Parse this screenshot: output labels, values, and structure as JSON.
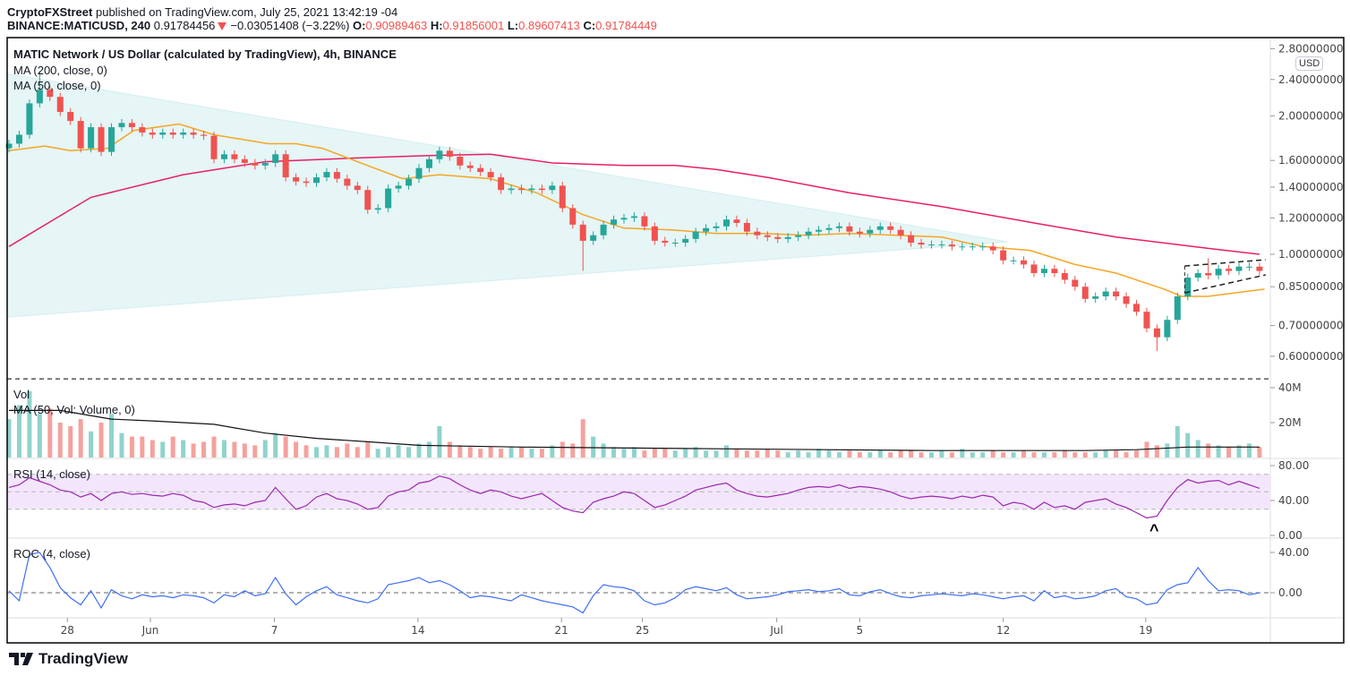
{
  "header": {
    "author": "CryptoFXStreet",
    "published": "published on TradingView.com, July 25, 2021 13:42:19 -04",
    "symbol": "BINANCE:MATICUSD, 240",
    "last": "0.91784456",
    "change": "−0.03051408 (−3.22%)",
    "o_label": "O:",
    "o": "0.90989463",
    "h_label": "H:",
    "h": "0.91856001",
    "l_label": "L:",
    "l": "0.89607413",
    "c_label": "C:",
    "c": "0.91784449"
  },
  "panes": {
    "title": "MATIC Network / US Dollar (calculated by TradingView), 4h, BINANCE",
    "ma200_label": "MA (200, close, 0)",
    "ma50_label": "MA (50, close, 0)",
    "vol_label": "Vol",
    "vol_ma_label": "MA (50, Vol: Volume, 0)",
    "rsi_label": "RSI (14, close)",
    "roc_label": "ROC (4, close)",
    "currency": "USD"
  },
  "footer": {
    "brand": "TradingView"
  },
  "colors": {
    "up": "#26a69a",
    "down": "#ef5350",
    "vol_up": "#8fd3cc",
    "vol_down": "#f5a19d",
    "ma200": "#e91e63",
    "ma50": "#f5a623",
    "rsi": "#9c27b0",
    "rsi_band": "#f3e6fc",
    "roc": "#3d6ff5",
    "triangle": "#e6f5f6"
  },
  "chart_data": {
    "type": "candlestick",
    "interval_note": "closes sampled every 12h",
    "price_scale": "log",
    "price_ticks": [
      "2.80000000",
      "2.40000000",
      "2.00000000",
      "1.60000000",
      "1.40000000",
      "1.20000000",
      "1.00000000",
      "0.85000000",
      "0.70000000",
      "0.60000000"
    ],
    "x_ticks": [
      {
        "label": "28",
        "i": 5.7
      },
      {
        "label": "Jun",
        "i": 13.8
      },
      {
        "label": "7",
        "i": 25.9
      },
      {
        "label": "14",
        "i": 39.9
      },
      {
        "label": "21",
        "i": 53.9
      },
      {
        "label": "25",
        "i": 61.8
      },
      {
        "label": "Jul",
        "i": 74.9
      },
      {
        "label": "5",
        "i": 83
      },
      {
        "label": "12",
        "i": 97
      },
      {
        "label": "19",
        "i": 110.9
      }
    ],
    "first_open": 1.7,
    "closes": [
      1.74,
      1.82,
      2.13,
      2.28,
      2.2,
      2.04,
      1.95,
      1.7,
      1.89,
      1.67,
      1.89,
      1.93,
      1.89,
      1.84,
      1.82,
      1.84,
      1.82,
      1.84,
      1.82,
      1.81,
      1.61,
      1.65,
      1.61,
      1.58,
      1.56,
      1.58,
      1.65,
      1.47,
      1.44,
      1.43,
      1.47,
      1.51,
      1.46,
      1.41,
      1.38,
      1.25,
      1.26,
      1.39,
      1.41,
      1.46,
      1.54,
      1.61,
      1.68,
      1.63,
      1.56,
      1.54,
      1.51,
      1.47,
      1.38,
      1.39,
      1.38,
      1.39,
      1.38,
      1.41,
      1.26,
      1.16,
      1.07,
      1.1,
      1.16,
      1.19,
      1.2,
      1.21,
      1.15,
      1.07,
      1.06,
      1.06,
      1.08,
      1.12,
      1.14,
      1.15,
      1.19,
      1.17,
      1.12,
      1.1,
      1.09,
      1.08,
      1.09,
      1.1,
      1.12,
      1.13,
      1.14,
      1.15,
      1.12,
      1.11,
      1.13,
      1.15,
      1.13,
      1.1,
      1.06,
      1.05,
      1.05,
      1.05,
      1.04,
      1.04,
      1.04,
      1.04,
      1.02,
      0.97,
      0.97,
      0.95,
      0.91,
      0.93,
      0.91,
      0.88,
      0.85,
      0.8,
      0.81,
      0.83,
      0.81,
      0.78,
      0.75,
      0.69,
      0.66,
      0.72,
      0.81,
      0.89,
      0.91,
      0.9,
      0.93,
      0.92,
      0.94,
      0.94,
      0.92
    ],
    "extremes": [
      {
        "i": 3,
        "high": 2.5
      },
      {
        "i": 56,
        "low": 0.92
      },
      {
        "i": 112,
        "low": 0.616
      },
      {
        "i": 117,
        "high": 0.98
      }
    ],
    "ma200": [
      [
        0,
        1.04
      ],
      [
        8,
        1.33
      ],
      [
        17,
        1.49
      ],
      [
        25,
        1.59
      ],
      [
        34,
        1.62
      ],
      [
        41,
        1.64
      ],
      [
        47,
        1.65
      ],
      [
        53,
        1.58
      ],
      [
        60,
        1.56
      ],
      [
        65,
        1.56
      ],
      [
        69,
        1.53
      ],
      [
        74,
        1.47
      ],
      [
        82,
        1.36
      ],
      [
        91,
        1.27
      ],
      [
        100,
        1.17
      ],
      [
        108,
        1.09
      ],
      [
        117,
        1.03
      ],
      [
        122,
        1.0
      ]
    ],
    "ma50": [
      [
        0,
        1.68
      ],
      [
        3.5,
        1.72
      ],
      [
        6,
        1.68
      ],
      [
        9.6,
        1.7
      ],
      [
        12.2,
        1.86
      ],
      [
        16.6,
        1.92
      ],
      [
        20,
        1.82
      ],
      [
        25.3,
        1.74
      ],
      [
        28,
        1.74
      ],
      [
        30.6,
        1.7
      ],
      [
        34,
        1.59
      ],
      [
        38.4,
        1.46
      ],
      [
        42,
        1.49
      ],
      [
        47,
        1.46
      ],
      [
        51.5,
        1.36
      ],
      [
        56,
        1.22
      ],
      [
        60,
        1.14
      ],
      [
        64.6,
        1.13
      ],
      [
        69,
        1.11
      ],
      [
        73.4,
        1.11
      ],
      [
        77.7,
        1.1
      ],
      [
        82,
        1.11
      ],
      [
        86.5,
        1.1
      ],
      [
        91,
        1.09
      ],
      [
        95,
        1.04
      ],
      [
        99.6,
        1.02
      ],
      [
        104,
        0.95
      ],
      [
        108,
        0.91
      ],
      [
        112.7,
        0.84
      ],
      [
        114.4,
        0.81
      ],
      [
        117,
        0.81
      ],
      [
        122.5,
        0.84
      ]
    ],
    "drawings": {
      "triangle": [
        [
          -0.2,
          2.47
        ],
        [
          97.4,
          1.065
        ],
        [
          -0.2,
          0.73
        ]
      ],
      "channel_upper": [
        [
          114.7,
          0.943
        ],
        [
          122.6,
          0.973
        ]
      ],
      "channel_lower": [
        [
          114.7,
          0.824
        ],
        [
          122.6,
          0.902
        ]
      ],
      "hline_price": 0.536
    },
    "volume": {
      "ticks": [
        "40M",
        "20M"
      ],
      "values_m": [
        22,
        30,
        38,
        25,
        28,
        20,
        18,
        22,
        15,
        20,
        25,
        14,
        12,
        12,
        10,
        9,
        12,
        10,
        8,
        9,
        12,
        10,
        9,
        8,
        7,
        10,
        14,
        12,
        9,
        7,
        6,
        7,
        6,
        8,
        6,
        9,
        5,
        6,
        7,
        6,
        8,
        9,
        18,
        9,
        7,
        6,
        5,
        6,
        5,
        6,
        6,
        5,
        5,
        7,
        9,
        8,
        22,
        12,
        8,
        6,
        5,
        6,
        4,
        5,
        5,
        4,
        5,
        6,
        4,
        4,
        7,
        5,
        4,
        4,
        5,
        4,
        3,
        4,
        3,
        5,
        4,
        3,
        4,
        3,
        3,
        4,
        3,
        4,
        4,
        3,
        3,
        4,
        3,
        5,
        3,
        3,
        4,
        3,
        3,
        4,
        3,
        3,
        3,
        4,
        3,
        3,
        3,
        4,
        4,
        3,
        4,
        9,
        7,
        8,
        18,
        14,
        10,
        8,
        7,
        6,
        7,
        8,
        6
      ],
      "ma_m": [
        [
          0,
          27
        ],
        [
          5,
          27
        ],
        [
          10,
          22
        ],
        [
          14,
          21
        ],
        [
          20,
          19
        ],
        [
          25,
          14
        ],
        [
          30,
          11
        ],
        [
          35,
          9
        ],
        [
          40,
          7
        ],
        [
          50,
          6
        ],
        [
          70,
          5
        ],
        [
          90,
          4
        ],
        [
          105,
          4
        ],
        [
          110,
          4.5
        ],
        [
          115,
          6
        ],
        [
          122,
          6
        ]
      ]
    },
    "rsi": {
      "ticks": [
        "80.00",
        "40.00",
        "0.00"
      ],
      "band": [
        30,
        70
      ],
      "values": [
        55,
        58,
        66,
        62,
        58,
        52,
        50,
        44,
        48,
        40,
        48,
        50,
        47,
        48,
        46,
        45,
        48,
        46,
        40,
        38,
        32,
        35,
        36,
        34,
        38,
        40,
        55,
        42,
        30,
        34,
        44,
        48,
        42,
        40,
        36,
        30,
        32,
        45,
        50,
        52,
        60,
        62,
        68,
        65,
        58,
        52,
        48,
        52,
        50,
        45,
        42,
        45,
        48,
        40,
        32,
        28,
        26,
        38,
        42,
        45,
        50,
        48,
        40,
        32,
        35,
        40,
        45,
        52,
        55,
        58,
        60,
        52,
        48,
        45,
        44,
        46,
        48,
        52,
        55,
        56,
        55,
        58,
        54,
        56,
        55,
        53,
        50,
        45,
        42,
        44,
        45,
        44,
        42,
        45,
        43,
        46,
        44,
        34,
        38,
        36,
        30,
        38,
        32,
        34,
        30,
        38,
        40,
        42,
        36,
        32,
        26,
        20,
        22,
        40,
        55,
        64,
        60,
        62,
        63,
        58,
        62,
        58,
        54
      ],
      "annotation": "^"
    },
    "roc": {
      "ticks": [
        "40.00",
        "0.00"
      ],
      "values": [
        2,
        -8,
        38,
        40,
        25,
        5,
        -5,
        -12,
        2,
        -15,
        3,
        -3,
        -6,
        -2,
        -4,
        -3,
        -5,
        -2,
        -3,
        -5,
        -10,
        -2,
        -4,
        2,
        -3,
        -1,
        15,
        -1,
        -12,
        -4,
        2,
        6,
        -2,
        -5,
        -8,
        -10,
        -6,
        8,
        10,
        12,
        15,
        10,
        12,
        8,
        2,
        -5,
        -3,
        -4,
        -6,
        -8,
        -2,
        -5,
        -8,
        -10,
        -12,
        -14,
        -20,
        -3,
        8,
        6,
        5,
        2,
        -8,
        -12,
        -10,
        -5,
        3,
        6,
        4,
        2,
        5,
        -2,
        -6,
        -5,
        -4,
        -2,
        1,
        2,
        3,
        1,
        2,
        4,
        -2,
        -3,
        1,
        3,
        -1,
        -4,
        -5,
        -3,
        -2,
        -1,
        -2,
        -3,
        -1,
        -2,
        -4,
        -6,
        -4,
        -3,
        -8,
        2,
        -5,
        -3,
        -6,
        -5,
        -3,
        2,
        4,
        -4,
        -6,
        -12,
        -10,
        3,
        8,
        10,
        25,
        12,
        2,
        3,
        2,
        -2,
        0
      ]
    }
  }
}
